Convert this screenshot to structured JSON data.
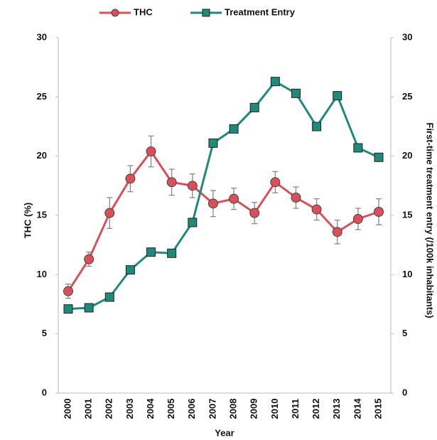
{
  "chart_data": {
    "type": "line",
    "x_label": "Year",
    "y_label": "THC (%)",
    "y2_label": "First-time treatment entry (/100k inhabitants)",
    "categories": [
      "2000",
      "2001",
      "2002",
      "2003",
      "2004",
      "2005",
      "2006",
      "2007",
      "2008",
      "2009",
      "2010",
      "2011",
      "2012",
      "2013",
      "2014",
      "2015"
    ],
    "series": [
      {
        "name": "THC",
        "color": "#d9505b",
        "marker": "circle",
        "values": [
          8.6,
          11.3,
          15.2,
          18.1,
          20.4,
          17.8,
          17.5,
          16.0,
          16.4,
          15.2,
          17.8,
          16.5,
          15.5,
          13.6,
          14.7,
          15.3
        ],
        "errors": [
          0.6,
          0.6,
          1.3,
          1.1,
          1.3,
          1.1,
          1.0,
          1.1,
          0.9,
          0.9,
          0.9,
          0.9,
          0.9,
          1.0,
          0.9,
          1.1
        ]
      },
      {
        "name": "Treatment Entry",
        "color": "#1f8a7a",
        "marker": "square",
        "axis": "y2",
        "values": [
          7.1,
          7.2,
          8.1,
          10.4,
          11.9,
          11.8,
          14.4,
          21.1,
          22.3,
          24.1,
          26.3,
          25.3,
          22.5,
          25.1,
          20.7,
          19.9
        ]
      }
    ],
    "ylim": [
      0,
      30
    ],
    "yticks": [
      0,
      5,
      10,
      15,
      20,
      25,
      30
    ],
    "y2lim": [
      0,
      30
    ],
    "y2ticks": [
      0,
      5,
      10,
      15,
      20,
      25,
      30
    ],
    "grid": false,
    "legend": "top"
  }
}
